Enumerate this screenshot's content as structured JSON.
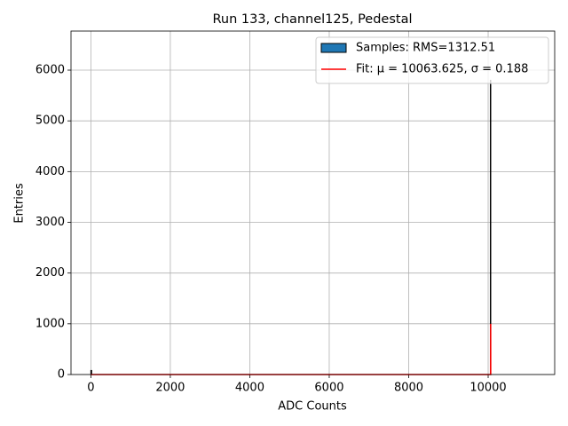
{
  "chart_data": {
    "type": "histogram",
    "title": "Run 133, channel125, Pedestal",
    "x_label": "ADC Counts",
    "y_label": "Entries",
    "bins": [
      0,
      20,
      10055,
      10065
    ],
    "values": [
      80,
      0,
      5800
    ],
    "name": "Samples: RMS=1312.51",
    "color": "#1f77b4",
    "edgecolor": "#000000",
    "fit": {
      "name": "Fit: μ = 10063.625, σ = 0.188",
      "color": "#ff0000",
      "x": [
        0,
        10062,
        10063.625,
        10065
      ],
      "values": [
        0,
        0,
        1000,
        0
      ]
    },
    "xlim": [
      -500,
      11675
    ],
    "ylim": [
      0,
      6770
    ],
    "xticks": [
      0,
      2000,
      4000,
      6000,
      8000,
      10000
    ],
    "yticks": [
      0,
      1000,
      2000,
      3000,
      4000,
      5000,
      6000
    ],
    "grid": true,
    "legend": "upper right"
  }
}
